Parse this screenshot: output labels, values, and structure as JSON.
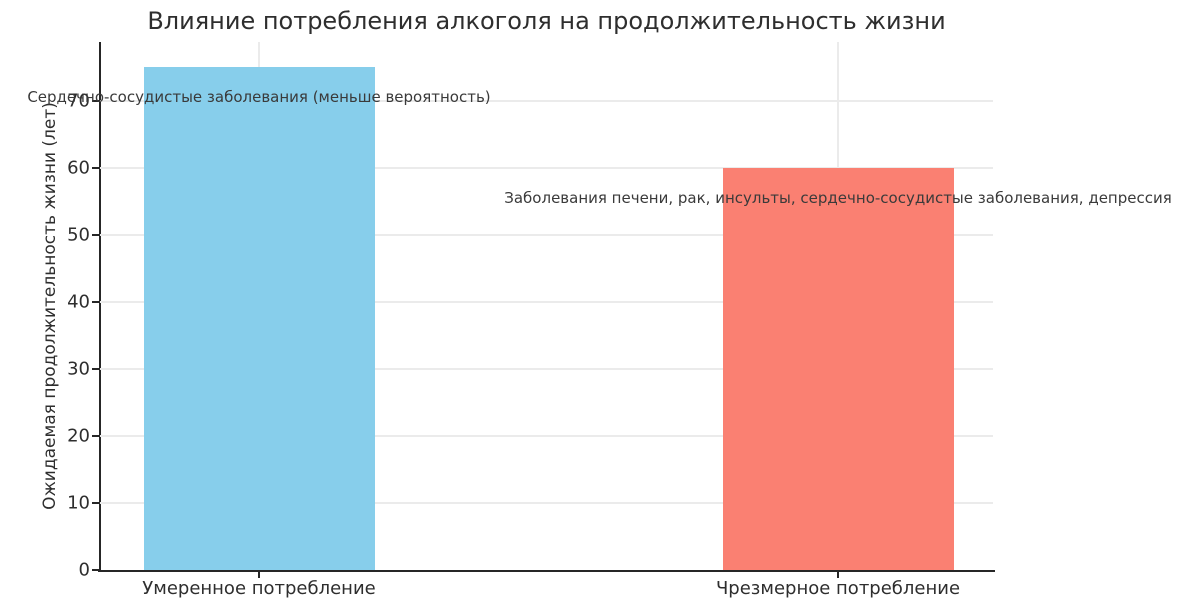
{
  "chart_data": {
    "type": "bar",
    "title": "Влияние потребления алкоголя на продолжительность жизни",
    "xlabel": "",
    "ylabel": "Ожидаемая продолжительность жизни (лет)",
    "categories": [
      "Умеренное потребление",
      "Чрезмерное потребление"
    ],
    "values": [
      75,
      60
    ],
    "bar_colors": [
      "#87CEEB",
      "#FA8072"
    ],
    "ylim": [
      0,
      78.75
    ],
    "yticks": [
      0,
      10,
      20,
      30,
      40,
      50,
      60,
      70
    ],
    "grid": true,
    "legend_position": "none",
    "annotations": [
      {
        "text": "Сердечно-сосудистые заболевания (меньше вероятность)",
        "category_index": 0,
        "y": 70.5
      },
      {
        "text": "Заболевания печени, рак, инсульты, сердечно-сосудистые заболевания, депрессия",
        "category_index": 1,
        "y": 55.5
      }
    ],
    "colors": {
      "grid": "#ebebeb",
      "spine": "#262626",
      "text": "#2e2e2e",
      "background": "#ffffff"
    }
  }
}
